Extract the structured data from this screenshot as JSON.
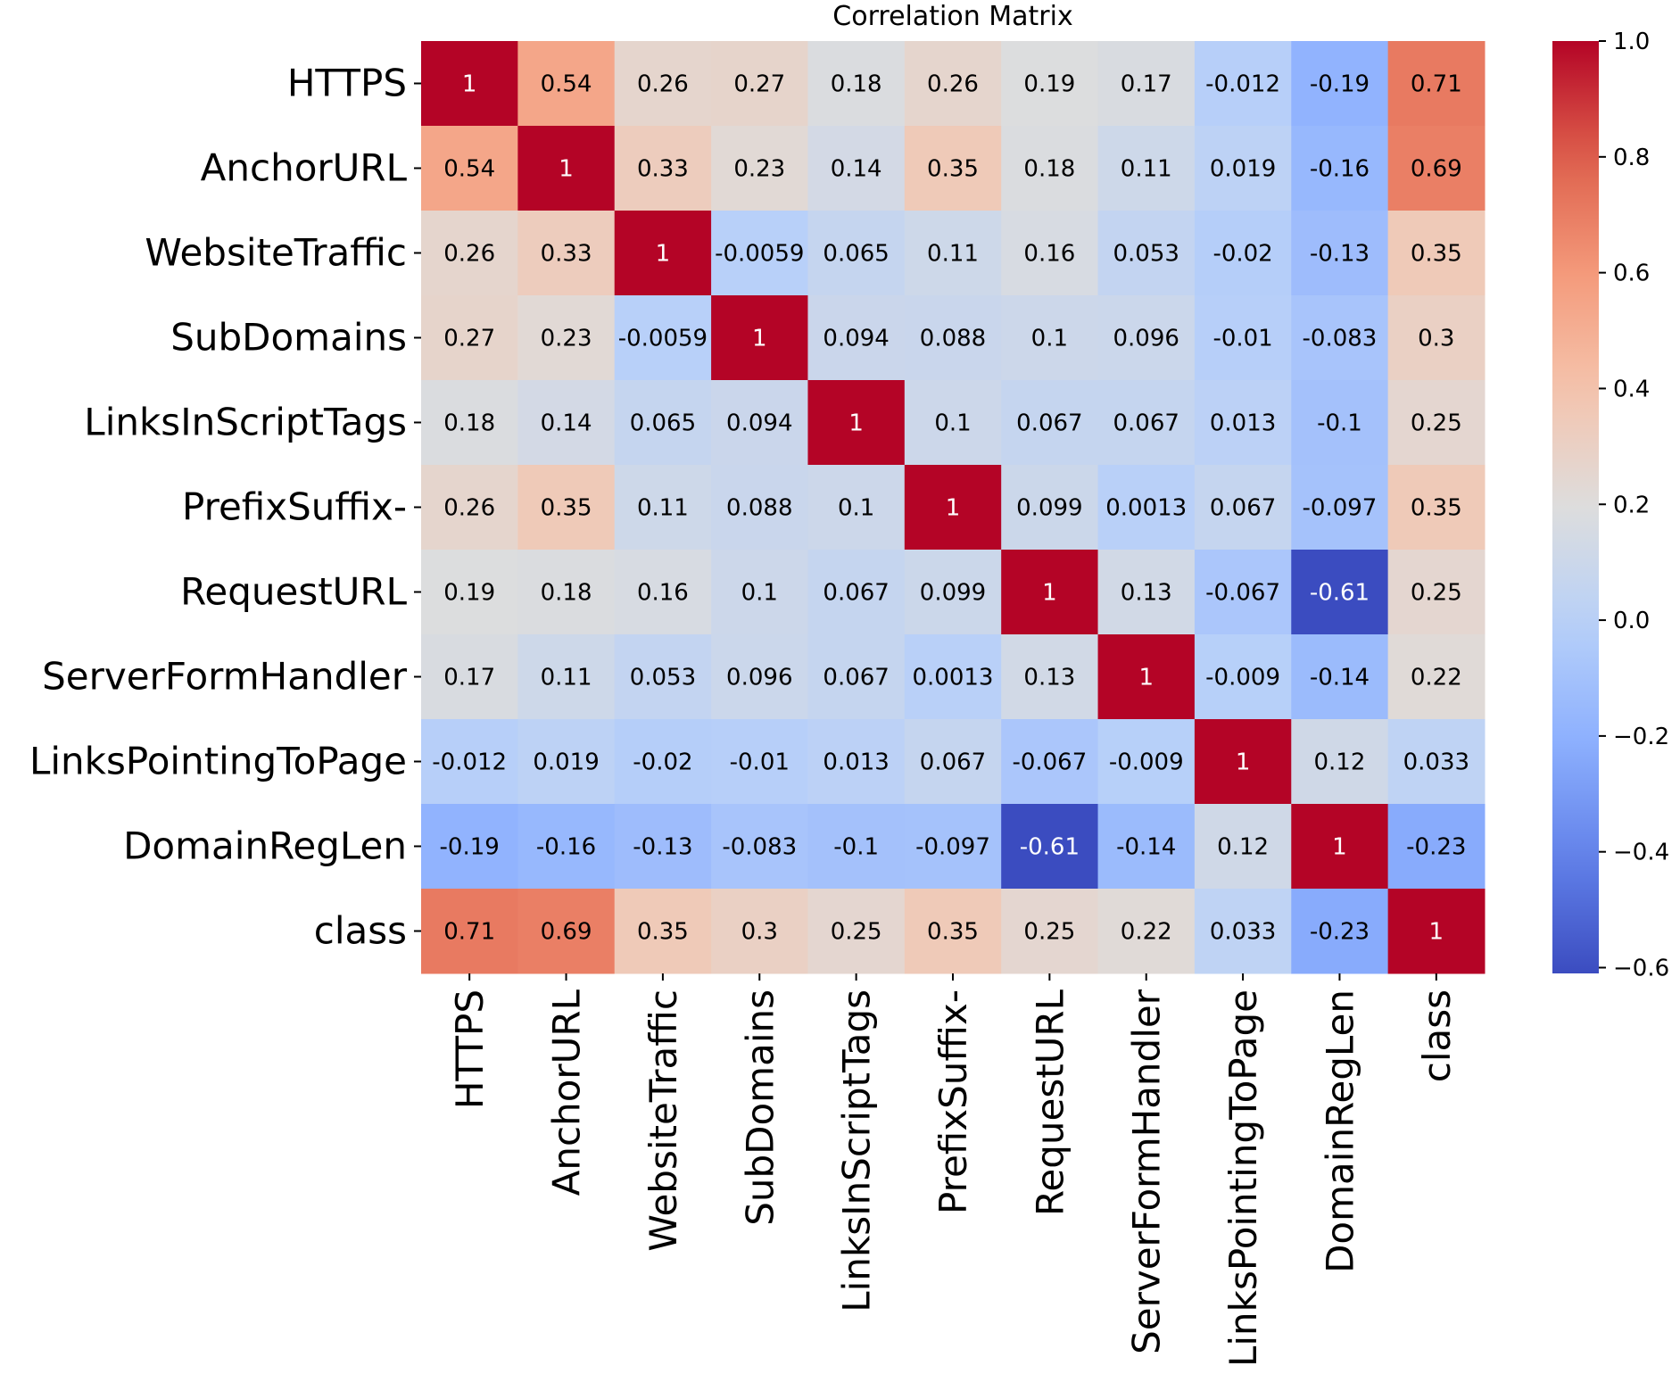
{
  "chart_data": {
    "type": "heatmap",
    "title": "Correlation Matrix",
    "colormap": "coolwarm",
    "vmin": -0.61,
    "vmax": 1.0,
    "rows": [
      "HTTPS",
      "AnchorURL",
      "WebsiteTraffic",
      "SubDomains",
      "LinksInScriptTags",
      "PrefixSuffix-",
      "RequestURL",
      "ServerFormHandler",
      "LinksPointingToPage",
      "DomainRegLen",
      "class"
    ],
    "columns": [
      "HTTPS",
      "AnchorURL",
      "WebsiteTraffic",
      "SubDomains",
      "LinksInScriptTags",
      "PrefixSuffix-",
      "RequestURL",
      "ServerFormHandler",
      "LinksPointingToPage",
      "DomainRegLen",
      "class"
    ],
    "values": [
      [
        1,
        0.54,
        0.26,
        0.27,
        0.18,
        0.26,
        0.19,
        0.17,
        -0.012,
        -0.19,
        0.71
      ],
      [
        0.54,
        1,
        0.33,
        0.23,
        0.14,
        0.35,
        0.18,
        0.11,
        0.019,
        -0.16,
        0.69
      ],
      [
        0.26,
        0.33,
        1,
        -0.0059,
        0.065,
        0.11,
        0.16,
        0.053,
        -0.02,
        -0.13,
        0.35
      ],
      [
        0.27,
        0.23,
        -0.0059,
        1,
        0.094,
        0.088,
        0.1,
        0.096,
        -0.01,
        -0.083,
        0.3
      ],
      [
        0.18,
        0.14,
        0.065,
        0.094,
        1,
        0.1,
        0.067,
        0.067,
        0.013,
        -0.1,
        0.25
      ],
      [
        0.26,
        0.35,
        0.11,
        0.088,
        0.1,
        1,
        0.099,
        0.0013,
        0.067,
        -0.097,
        0.35
      ],
      [
        0.19,
        0.18,
        0.16,
        0.1,
        0.067,
        0.099,
        1,
        0.13,
        -0.067,
        -0.61,
        0.25
      ],
      [
        0.17,
        0.11,
        0.053,
        0.096,
        0.067,
        0.0013,
        0.13,
        1,
        -0.009,
        -0.14,
        0.22
      ],
      [
        -0.012,
        0.019,
        -0.02,
        -0.01,
        0.013,
        0.067,
        -0.067,
        -0.009,
        1,
        0.12,
        0.033
      ],
      [
        -0.19,
        -0.16,
        -0.13,
        -0.083,
        -0.1,
        -0.097,
        -0.61,
        -0.14,
        0.12,
        1,
        -0.23
      ],
      [
        0.71,
        0.69,
        0.35,
        0.3,
        0.25,
        0.35,
        0.25,
        0.22,
        0.033,
        -0.23,
        1
      ]
    ],
    "colorbar_ticks": [
      "1.0",
      "0.8",
      "0.6",
      "0.4",
      "0.2",
      "0.0",
      "−0.2",
      "−0.4",
      "−0.6"
    ],
    "colorbar_tick_values": [
      1.0,
      0.8,
      0.6,
      0.4,
      0.2,
      0.0,
      -0.2,
      -0.4,
      -0.6
    ]
  }
}
